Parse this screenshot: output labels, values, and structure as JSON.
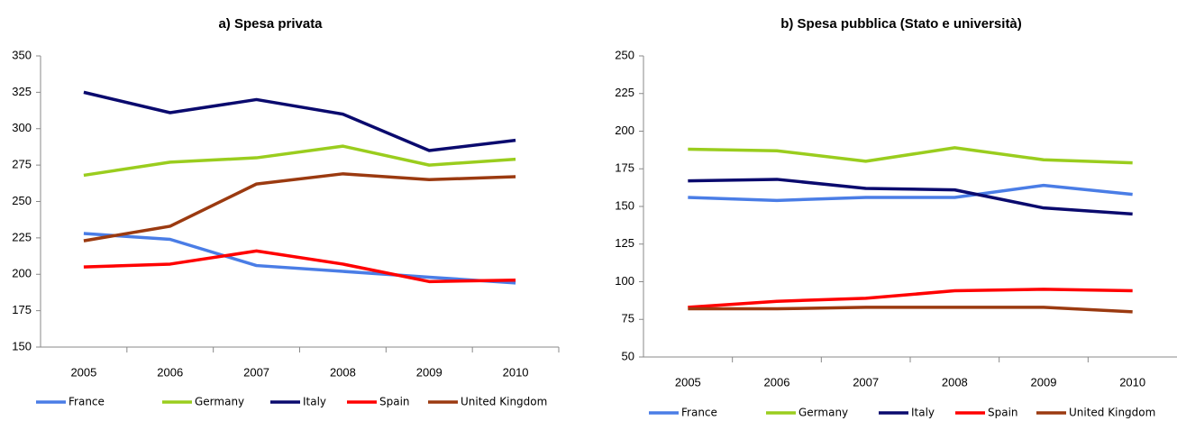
{
  "chart_data": [
    {
      "type": "line",
      "title": "a) Spesa privata",
      "categories": [
        "2005",
        "2006",
        "2007",
        "2008",
        "2009",
        "2010"
      ],
      "ylim": [
        150,
        350
      ],
      "yticks": [
        150,
        175,
        200,
        225,
        250,
        275,
        300,
        325,
        350
      ],
      "grid": false,
      "legend": "bottom",
      "series": [
        {
          "name": "France",
          "color": "#4a7de6",
          "values": [
            228,
            224,
            206,
            202,
            198,
            194
          ]
        },
        {
          "name": "Germany",
          "color": "#9acd1e",
          "values": [
            268,
            277,
            280,
            288,
            275,
            279
          ]
        },
        {
          "name": "Italy",
          "color": "#0a0a6e",
          "values": [
            325,
            311,
            320,
            310,
            285,
            292
          ]
        },
        {
          "name": "Spain",
          "color": "#ff0000",
          "values": [
            205,
            207,
            216,
            207,
            195,
            196
          ]
        },
        {
          "name": "United Kingdom",
          "color": "#9b3a10",
          "values": [
            223,
            233,
            262,
            269,
            265,
            267
          ]
        }
      ]
    },
    {
      "type": "line",
      "title": "b) Spesa pubblica (Stato e università)",
      "categories": [
        "2005",
        "2006",
        "2007",
        "2008",
        "2009",
        "2010"
      ],
      "ylim": [
        50,
        250
      ],
      "yticks": [
        50,
        75,
        100,
        125,
        150,
        175,
        200,
        225,
        250
      ],
      "grid": false,
      "legend": "bottom",
      "series": [
        {
          "name": "France",
          "color": "#4a7de6",
          "values": [
            156,
            154,
            156,
            156,
            164,
            158
          ]
        },
        {
          "name": "Germany",
          "color": "#9acd1e",
          "values": [
            188,
            187,
            180,
            189,
            181,
            179
          ]
        },
        {
          "name": "Italy",
          "color": "#0a0a6e",
          "values": [
            167,
            168,
            162,
            161,
            149,
            145
          ]
        },
        {
          "name": "Spain",
          "color": "#ff0000",
          "values": [
            83,
            87,
            89,
            94,
            95,
            94
          ]
        },
        {
          "name": "United Kingdom",
          "color": "#9b3a10",
          "values": [
            82,
            82,
            83,
            83,
            83,
            80
          ]
        }
      ]
    }
  ]
}
